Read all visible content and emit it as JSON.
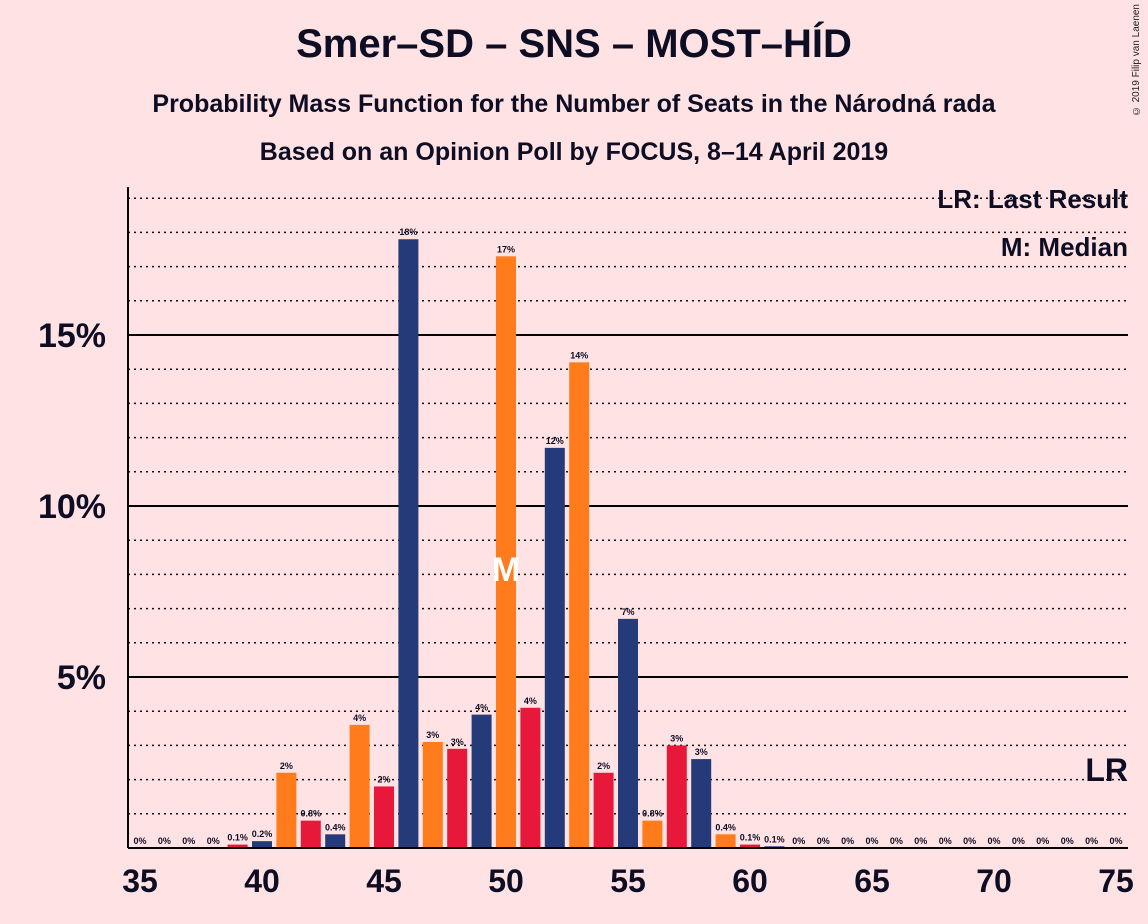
{
  "header": {
    "title": "Smer–SD – SNS – MOST–HÍD",
    "subtitle1": "Probability Mass Function for the Number of Seats in the Národná rada",
    "subtitle2": "Based on an Opinion Poll by FOCUS, 8–14 April 2019",
    "copyright": "© 2019 Filip van Laenen"
  },
  "legend": {
    "last_result": "LR: Last Result",
    "median": "M: Median",
    "lr_mark": "LR",
    "median_mark": "M"
  },
  "colors": {
    "background": "#FFE2E3",
    "navy": "#253A78",
    "orange": "#FF7B1C",
    "red": "#E8183A",
    "ink": "#0d0d24"
  },
  "chart_data": {
    "type": "bar",
    "x": [
      35,
      36,
      37,
      38,
      39,
      40,
      41,
      42,
      43,
      44,
      45,
      46,
      47,
      48,
      49,
      50,
      51,
      52,
      53,
      54,
      55,
      56,
      57,
      58,
      59,
      60,
      61,
      62,
      63,
      64,
      65,
      66,
      67,
      68,
      69,
      70,
      71,
      72,
      73,
      74,
      75
    ],
    "values": [
      0,
      0,
      0,
      0,
      0.1,
      0.2,
      2.2,
      0.8,
      0.4,
      3.6,
      1.8,
      17.8,
      3.1,
      2.9,
      3.9,
      17.3,
      4.1,
      11.7,
      14.2,
      2.2,
      6.7,
      0.8,
      3.0,
      2.6,
      0.4,
      0.1,
      0.05,
      0,
      0,
      0,
      0,
      0,
      0,
      0,
      0,
      0,
      0,
      0,
      0,
      0,
      0
    ],
    "labels": [
      "0%",
      "0%",
      "0%",
      "0%",
      "0.1%",
      "0.2%",
      "2%",
      "0.8%",
      "0.4%",
      "4%",
      "2%",
      "18%",
      "3%",
      "3%",
      "4%",
      "17%",
      "4%",
      "12%",
      "14%",
      "2%",
      "7%",
      "0.8%",
      "3%",
      "3%",
      "0.4%",
      "0.1%",
      "0.1%",
      "0%",
      "0%",
      "0%",
      "0%",
      "0%",
      "0%",
      "0%",
      "0%",
      "0%",
      "0%",
      "0%",
      "0%",
      "0%",
      "0%"
    ],
    "bar_colors": [
      "red",
      "navy",
      "orange",
      "red",
      "red",
      "navy",
      "orange",
      "red",
      "navy",
      "orange",
      "red",
      "navy",
      "orange",
      "red",
      "navy",
      "orange",
      "red",
      "navy",
      "orange",
      "red",
      "navy",
      "orange",
      "red",
      "navy",
      "orange",
      "red",
      "navy",
      "orange",
      "red",
      "navy",
      "orange",
      "red",
      "navy",
      "orange",
      "red",
      "navy",
      "orange",
      "red",
      "navy",
      "orange",
      "red"
    ],
    "x_ticks": [
      35,
      40,
      45,
      50,
      55,
      60,
      65,
      70,
      75
    ],
    "y_ticks": [
      5,
      10,
      15
    ],
    "y_tick_labels": [
      "5%",
      "10%",
      "15%"
    ],
    "ylim": [
      0,
      19.5
    ],
    "median": 50,
    "last_result": 75
  }
}
